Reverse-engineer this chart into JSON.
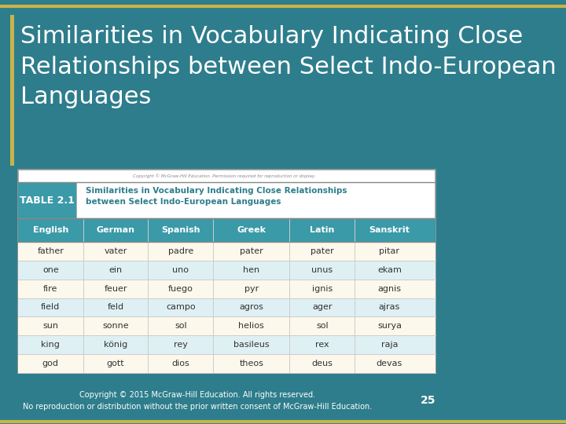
{
  "bg_color": "#2e7d8c",
  "title": "Similarities in Vocabulary Indicating Close\nRelationships between Select Indo-European\nLanguages",
  "title_color": "#ffffff",
  "title_fontsize": 22,
  "border_color_top": "#c8b44a",
  "border_color_bottom": "#c8b44a",
  "table_label": "TABLE 2.1",
  "table_label_bg": "#3a9aa8",
  "table_title": "Similarities in Vocabulary Indicating Close Relationships\nbetween Select Indo-European Languages",
  "columns": [
    "English",
    "German",
    "Spanish",
    "Greek",
    "Latin",
    "Sanskrit"
  ],
  "rows": [
    [
      "father",
      "vater",
      "padre",
      "pater",
      "pater",
      "pitar"
    ],
    [
      "one",
      "ein",
      "uno",
      "hen",
      "unus",
      "ekam"
    ],
    [
      "fire",
      "feuer",
      "fuego",
      "pyr",
      "ignis",
      "agnis"
    ],
    [
      "field",
      "feld",
      "campo",
      "agros",
      "ager",
      "ajras"
    ],
    [
      "sun",
      "sonne",
      "sol",
      "helios",
      "sol",
      "surya"
    ],
    [
      "king",
      "könig",
      "rey",
      "basileus",
      "rex",
      "raja"
    ],
    [
      "god",
      "gott",
      "dios",
      "theos",
      "deus",
      "devas"
    ]
  ],
  "header_bg": "#3a9aa8",
  "header_text_color": "#ffffff",
  "row_bg_odd": "#fdf8ec",
  "row_bg_even": "#dff0f4",
  "row_text_color": "#333333",
  "table_border_color": "#aaaaaa",
  "copyright_text": "Copyright © 2015 McGraw-Hill Education. All rights reserved.\nNo reproduction or distribution without the prior written consent of McGraw-Hill Education.",
  "copyright_color": "#ffffff",
  "page_number": "25",
  "page_number_color": "#ffffff",
  "watermark": "Copyright © McGraw-Hill Education. Permission required for reproduction or display."
}
